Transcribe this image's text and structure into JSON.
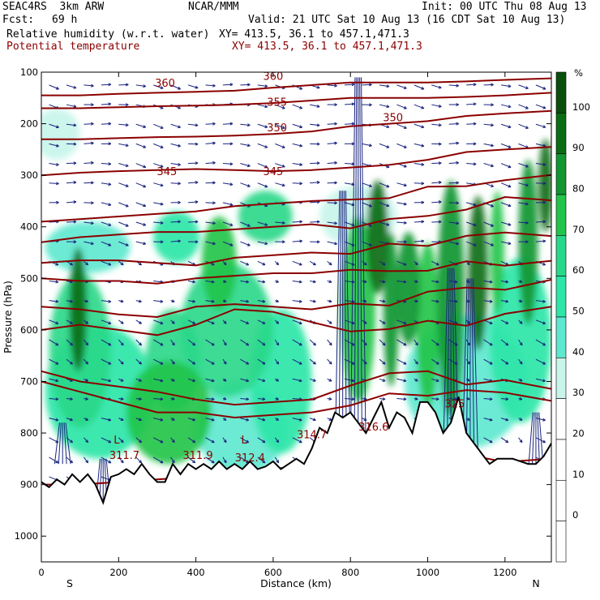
{
  "header": {
    "model": "SEAC4RS  3km ARW",
    "org": "NCAR/MMM",
    "init": "Init: 00 UTC Thu 08 Aug 13",
    "fcst_label": "Fcst:",
    "fcst_value": "69 h",
    "valid": "Valid: 21 UTC Sat 10 Aug 13 (16 CDT Sat 10 Aug 13)",
    "field1": "Relative humidity (w.r.t. water)",
    "xy1": "XY= 413.5, 36.1 to 457.1,471.3",
    "field2": "Potential temperature",
    "xy2": "XY= 413.5, 36.1 to 457.1,471.3"
  },
  "colors": {
    "theta": "#8b0000",
    "wind": "#1a237e",
    "terrain": "#000000"
  },
  "chart_data": {
    "type": "heatmap",
    "title": "",
    "xlabel": "Distance (km)",
    "ylabel": "Pressure (hPa)",
    "xlim": [
      0,
      1320
    ],
    "ylim": [
      1050,
      100
    ],
    "x_ticks": [
      0,
      200,
      400,
      600,
      800,
      1000,
      1200
    ],
    "y_ticks": [
      100,
      200,
      300,
      400,
      500,
      600,
      700,
      800,
      900,
      1000
    ],
    "x_end_labels": {
      "left": "S",
      "right": "N"
    },
    "colorbar": {
      "unit": "%",
      "ticks": [
        0,
        10,
        20,
        30,
        40,
        50,
        60,
        70,
        80,
        90,
        100
      ],
      "colors": [
        "#ffffff",
        "#ffffff",
        "#ffffff",
        "#ffffff",
        "#c8f5ea",
        "#5ee8cf",
        "#2ee6a8",
        "#2ad88a",
        "#22c44a",
        "#119632",
        "#0a6d14",
        "#0a4e0c"
      ]
    },
    "theta_labels": [
      {
        "text": "360",
        "x": 600,
        "p": 115
      },
      {
        "text": "360",
        "x": 320,
        "p": 128
      },
      {
        "text": "355",
        "x": 610,
        "p": 165
      },
      {
        "text": "350",
        "x": 610,
        "p": 215
      },
      {
        "text": "350",
        "x": 910,
        "p": 195
      },
      {
        "text": "345",
        "x": 325,
        "p": 300
      },
      {
        "text": "345",
        "x": 600,
        "p": 300
      },
      {
        "text": "311.7",
        "x": 215,
        "p": 850
      },
      {
        "text": "311.9",
        "x": 405,
        "p": 850
      },
      {
        "text": "312.4",
        "x": 540,
        "p": 855
      },
      {
        "text": "314.7",
        "x": 700,
        "p": 810
      },
      {
        "text": "316.6",
        "x": 860,
        "p": 795
      },
      {
        "text": "325",
        "x": 1070,
        "p": 750
      }
    ],
    "low_markers": [
      {
        "text": "L",
        "x": 195,
        "p": 820
      },
      {
        "text": "L",
        "x": 525,
        "p": 820
      }
    ],
    "theta_isentropes": [
      {
        "theta": 300,
        "p": [
          900,
          900,
          895,
          890,
          885,
          880,
          870,
          860,
          855,
          850,
          850,
          850,
          850,
          850
        ]
      },
      {
        "theta": 305,
        "p": [
          700,
          720,
          740,
          760,
          760,
          770,
          765,
          760,
          745,
          730,
          720,
          720,
          725,
          730
        ]
      },
      {
        "theta": 310,
        "p": [
          680,
          700,
          710,
          720,
          735,
          745,
          740,
          735,
          700,
          690,
          680,
          700,
          705,
          710
        ]
      },
      {
        "theta": 315,
        "p": [
          600,
          590,
          600,
          610,
          590,
          560,
          565,
          585,
          600,
          595,
          590,
          585,
          570,
          560
        ]
      },
      {
        "theta": 320,
        "p": [
          555,
          560,
          570,
          575,
          555,
          550,
          555,
          560,
          555,
          545,
          530,
          520,
          515,
          510
        ]
      },
      {
        "theta": 325,
        "p": [
          500,
          505,
          505,
          510,
          500,
          495,
          490,
          490,
          490,
          485,
          480,
          475,
          470,
          465
        ]
      },
      {
        "theta": 330,
        "p": [
          470,
          465,
          465,
          470,
          475,
          460,
          455,
          450,
          450,
          440,
          430,
          420,
          415,
          410
        ]
      },
      {
        "theta": 335,
        "p": [
          430,
          420,
          415,
          410,
          410,
          405,
          400,
          395,
          395,
          390,
          380,
          360,
          350,
          345
        ]
      },
      {
        "theta": 340,
        "p": [
          390,
          385,
          380,
          375,
          370,
          360,
          355,
          350,
          345,
          340,
          330,
          315,
          310,
          305
        ]
      },
      {
        "theta": 345,
        "p": [
          300,
          295,
          292,
          290,
          288,
          290,
          292,
          290,
          285,
          280,
          270,
          255,
          250,
          245
        ]
      },
      {
        "theta": 350,
        "p": [
          230,
          230,
          228,
          226,
          225,
          223,
          220,
          215,
          205,
          200,
          195,
          185,
          180,
          175
        ]
      },
      {
        "theta": 355,
        "p": [
          170,
          170,
          168,
          166,
          165,
          163,
          160,
          155,
          150,
          150,
          150,
          148,
          145,
          140
        ]
      },
      {
        "theta": 360,
        "p": [
          145,
          145,
          142,
          140,
          138,
          136,
          130,
          125,
          120,
          120,
          120,
          118,
          115,
          112
        ]
      }
    ],
    "theta_x": [
      0,
      100,
      200,
      300,
      400,
      500,
      600,
      700,
      800,
      900,
      1000,
      1100,
      1200,
      1320
    ],
    "terrain": {
      "x": [
        0,
        20,
        40,
        60,
        80,
        100,
        120,
        140,
        160,
        180,
        200,
        220,
        240,
        260,
        280,
        300,
        320,
        340,
        360,
        380,
        400,
        420,
        440,
        460,
        480,
        500,
        520,
        540,
        560,
        580,
        600,
        620,
        640,
        660,
        680,
        700,
        720,
        740,
        760,
        780,
        800,
        820,
        840,
        860,
        880,
        900,
        920,
        940,
        960,
        980,
        1000,
        1020,
        1040,
        1060,
        1080,
        1100,
        1120,
        1140,
        1160,
        1180,
        1200,
        1220,
        1240,
        1260,
        1280,
        1300,
        1320
      ],
      "p": [
        895,
        905,
        890,
        900,
        880,
        895,
        880,
        900,
        935,
        885,
        880,
        870,
        880,
        860,
        880,
        895,
        895,
        860,
        880,
        860,
        870,
        860,
        870,
        855,
        870,
        860,
        870,
        855,
        870,
        865,
        855,
        870,
        860,
        850,
        860,
        830,
        790,
        800,
        760,
        770,
        760,
        780,
        800,
        770,
        740,
        790,
        760,
        770,
        800,
        740,
        740,
        760,
        800,
        780,
        730,
        800,
        820,
        840,
        860,
        850,
        850,
        850,
        855,
        860,
        860,
        845,
        820
      ]
    },
    "rh_cells": [
      {
        "x": 95,
        "p": 560,
        "rx": 22,
        "rp": 120,
        "rh": 90
      },
      {
        "x": 100,
        "p": 640,
        "rx": 80,
        "rp": 150,
        "rh": 60
      },
      {
        "x": 150,
        "p": 720,
        "rx": 140,
        "rp": 130,
        "rh": 55
      },
      {
        "x": 120,
        "p": 440,
        "rx": 110,
        "rp": 50,
        "rh": 42
      },
      {
        "x": 330,
        "p": 760,
        "rx": 110,
        "rp": 100,
        "rh": 70
      },
      {
        "x": 340,
        "p": 660,
        "rx": 70,
        "rp": 100,
        "rh": 65
      },
      {
        "x": 460,
        "p": 470,
        "rx": 45,
        "rp": 90,
        "rh": 75
      },
      {
        "x": 350,
        "p": 420,
        "rx": 60,
        "rp": 50,
        "rh": 55
      },
      {
        "x": 580,
        "p": 380,
        "rx": 70,
        "rp": 50,
        "rh": 60
      },
      {
        "x": 480,
        "p": 600,
        "rx": 120,
        "rp": 130,
        "rh": 60
      },
      {
        "x": 620,
        "p": 700,
        "rx": 80,
        "rp": 140,
        "rh": 55
      },
      {
        "x": 520,
        "p": 790,
        "rx": 120,
        "rp": 90,
        "rh": 45
      },
      {
        "x": 820,
        "p": 560,
        "rx": 45,
        "rp": 180,
        "rh": 75
      },
      {
        "x": 870,
        "p": 420,
        "rx": 28,
        "rp": 110,
        "rh": 95
      },
      {
        "x": 905,
        "p": 560,
        "rx": 20,
        "rp": 150,
        "rh": 85
      },
      {
        "x": 950,
        "p": 520,
        "rx": 30,
        "rp": 110,
        "rh": 80
      },
      {
        "x": 1000,
        "p": 590,
        "rx": 30,
        "rp": 160,
        "rh": 75
      },
      {
        "x": 1060,
        "p": 540,
        "rx": 35,
        "rp": 230,
        "rh": 85
      },
      {
        "x": 1130,
        "p": 490,
        "rx": 25,
        "rp": 150,
        "rh": 90
      },
      {
        "x": 1180,
        "p": 450,
        "rx": 18,
        "rp": 120,
        "rh": 75
      },
      {
        "x": 1260,
        "p": 430,
        "rx": 25,
        "rp": 160,
        "rh": 85
      },
      {
        "x": 1305,
        "p": 320,
        "rx": 18,
        "rp": 90,
        "rh": 95
      },
      {
        "x": 1100,
        "p": 700,
        "rx": 160,
        "rp": 130,
        "rh": 45
      },
      {
        "x": 820,
        "p": 380,
        "rx": 100,
        "rp": 60,
        "rh": 35
      },
      {
        "x": 40,
        "p": 220,
        "rx": 60,
        "rp": 50,
        "rh": 30
      },
      {
        "x": 1240,
        "p": 620,
        "rx": 80,
        "rp": 160,
        "rh": 55
      }
    ]
  }
}
